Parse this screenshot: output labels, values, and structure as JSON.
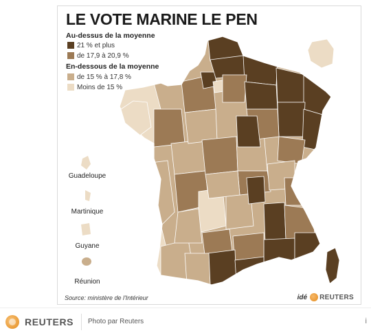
{
  "map": {
    "title": "LE VOTE MARINE LE PEN",
    "legend": {
      "above_heading": "Au-dessus de la moyenne",
      "below_heading": "En-dessous de la moyenne",
      "items": [
        {
          "label": "21 % et plus",
          "color": "#5a3f22"
        },
        {
          "label": "de 17,9 à 20,9 %",
          "color": "#9c7a55"
        },
        {
          "label": "de 15 % à 17,8 %",
          "color": "#c9ae8c"
        },
        {
          "label": "Moins de 15 %",
          "color": "#ecdcc5"
        }
      ]
    },
    "overseas": [
      "Guadeloupe",
      "Martinique",
      "Guyane",
      "Réunion"
    ],
    "source": "Source: ministère de l'Intérieur",
    "credit": {
      "ide": "idé",
      "brand": "REUTERS"
    }
  },
  "footer": {
    "brand": "REUTERS",
    "photo_credit": "Photo par Reuters",
    "right_mark": "i"
  }
}
